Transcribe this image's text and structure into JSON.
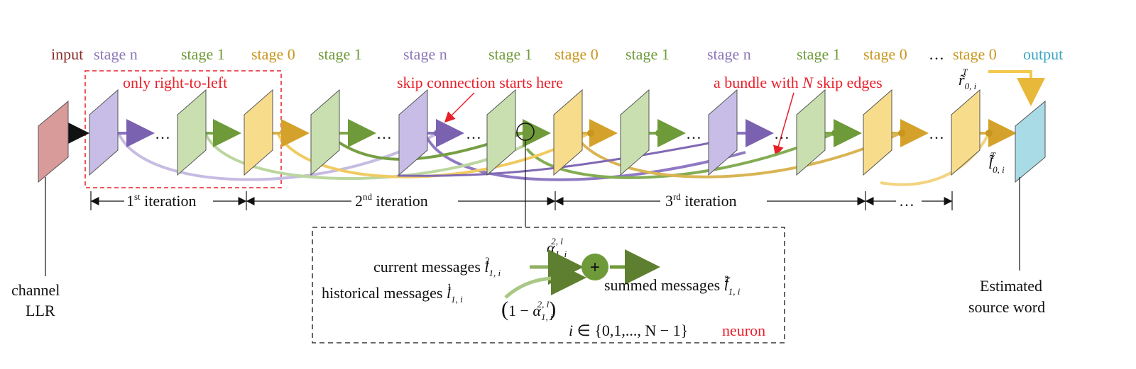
{
  "labels": {
    "input": "input",
    "output": "output",
    "channel_line1": "channel",
    "channel_line2": "LLR",
    "estimated_line1": "Estimated",
    "estimated_line2": "source word",
    "only_rtl": "only right-to-left",
    "skip_starts": "skip connection starts here",
    "bundle_pre": "a bundle with ",
    "bundle_n": "N",
    "bundle_post": " skip edges",
    "neuron": "neuron",
    "dots": "…"
  },
  "stage_labels": [
    "stage n",
    "stage 1",
    "stage 0",
    "stage 1",
    "stage n",
    "stage 1",
    "stage 0",
    "stage 1",
    "stage n",
    "stage 1",
    "stage 0",
    "stage 0"
  ],
  "iterations": [
    {
      "num": "1",
      "sup": "st",
      "text": " iteration"
    },
    {
      "num": "2",
      "sup": "nd",
      "text": " iteration"
    },
    {
      "num": "3",
      "sup": "rd",
      "text": " iteration"
    }
  ],
  "neuron_box": {
    "current": "current messages ",
    "historical": "historical messages ",
    "summed": "summed  messages ",
    "l": "l",
    "sub_1i": "1, i",
    "sup_2": "2",
    "sup_1": "1",
    "alpha": "α",
    "alpha_sup": "2, l",
    "one_minus": "1 − ",
    "domain_i": "i",
    "domain_set": " ∈ {0,1,..., N − 1}",
    "plus": "+"
  },
  "output_labels": {
    "r_tilde": "r̃",
    "l_tilde": "l̃",
    "sub_0i": "0, i",
    "sup_T": "T"
  },
  "colors": {
    "purple": "#9b8fc9",
    "green": "#9bbf7a",
    "yellow": "#f0c95a",
    "red_text": "#e8202a",
    "input_label": "#8b2b2b",
    "output_label": "#3aa6c0",
    "stage_n": "#8b77b8",
    "stage_1": "#6f9a3a",
    "stage_0": "#c8961c"
  }
}
